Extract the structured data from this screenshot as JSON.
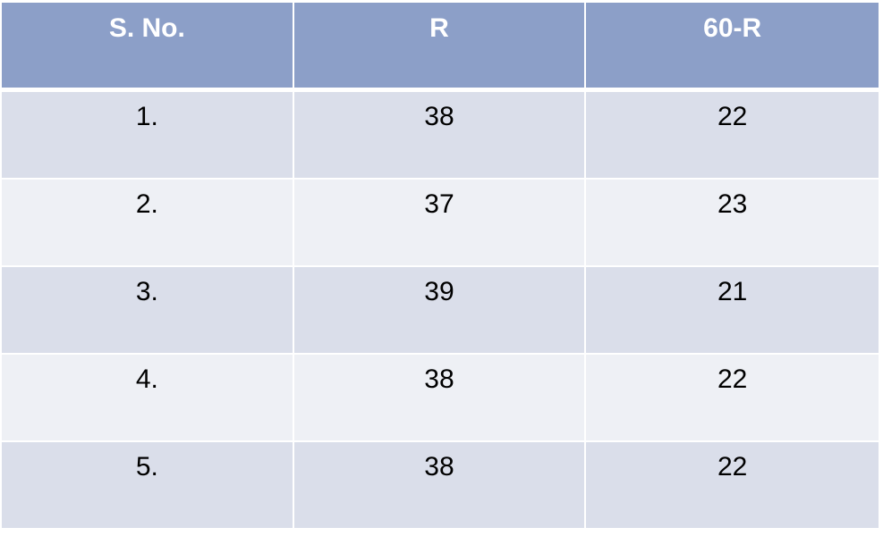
{
  "table": {
    "headers": [
      "S. No.",
      "R",
      "60-R"
    ],
    "rows": [
      [
        "1.",
        "38",
        "22"
      ],
      [
        "2.",
        "37",
        "23"
      ],
      [
        "3.",
        "39",
        "21"
      ],
      [
        "4.",
        "38",
        "22"
      ],
      [
        "5.",
        "38",
        "22"
      ]
    ]
  },
  "colors": {
    "header_bg": "#8c9fc8",
    "row_odd_bg": "#dadeea",
    "row_even_bg": "#eef0f5"
  }
}
